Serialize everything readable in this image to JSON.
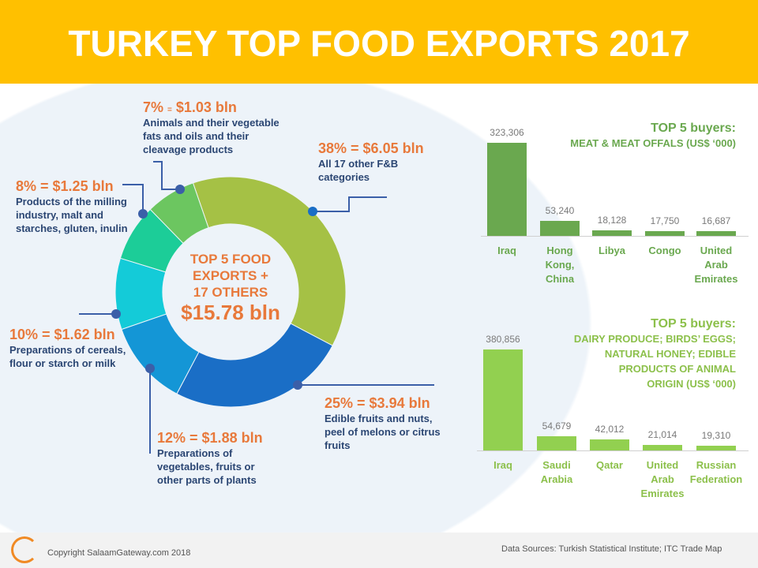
{
  "title": "TURKEY TOP FOOD EXPORTS 2017",
  "chart_data": [
    {
      "type": "pie",
      "center_text": [
        "TOP 5 FOOD",
        "EXPORTS +",
        "17 OTHERS"
      ],
      "total": "$15.78 bln",
      "slices": [
        {
          "pct_label": "38% = $6.05 bln",
          "percent": 38,
          "value_bln": 6.05,
          "desc": "All 17 other F&B categories",
          "color": "#a5c145"
        },
        {
          "pct_label": "25% = $3.94 bln",
          "percent": 25,
          "value_bln": 3.94,
          "desc": "Edible fruits and nuts, peel of melons or citrus fruits",
          "color": "#1a6ec6"
        },
        {
          "pct_label": "12% = $1.88 bln",
          "percent": 12,
          "value_bln": 1.88,
          "desc": "Preparations of vegetables, fruits or other parts of plants",
          "color": "#1496d6"
        },
        {
          "pct_label": "10% = $1.62 bln",
          "percent": 10,
          "value_bln": 1.62,
          "desc": "Preparations of cereals, flour or starch or milk",
          "color": "#14cbd8"
        },
        {
          "pct_label": "8% = $1.25 bln",
          "percent": 8,
          "value_bln": 1.25,
          "desc": "Products of the milling industry, malt and starches, gluten, inulin",
          "color": "#1ccd98"
        },
        {
          "pct_label_a": "7%",
          "pct_label_b": "=",
          "pct_label_c": "$1.03 bln",
          "percent": 7,
          "value_bln": 1.03,
          "desc": "Animals and their vegetable fats and oils and their cleavage products",
          "color": "#6cc660"
        }
      ]
    },
    {
      "type": "bar",
      "title": "TOP 5 buyers:",
      "subtitle": "MEAT & MEAT OFFALS (US$ ‘000)",
      "categories": [
        "Iraq",
        "Hong Kong, China",
        "Libya",
        "Congo",
        "United Arab Emirates"
      ],
      "values": [
        323306,
        53240,
        18128,
        17750,
        16687
      ],
      "value_labels": [
        "323,306",
        "53,240",
        "18,128",
        "17,750",
        "16,687"
      ],
      "color": "#6aa84f"
    },
    {
      "type": "bar",
      "title": "TOP 5 buyers:",
      "subtitle_lines": [
        "DAIRY PRODUCE; BIRDS’ EGGS;",
        "NATURAL HONEY; EDIBLE",
        "PRODUCTS OF ANIMAL",
        "ORIGIN (US$ ‘000)"
      ],
      "categories": [
        "Iraq",
        "Saudi Arabia",
        "Qatar",
        "United Arab Emirates",
        "Russian Federation"
      ],
      "values": [
        380856,
        54679,
        42012,
        21014,
        19310
      ],
      "value_labels": [
        "380,856",
        "54,679",
        "42,012",
        "21,014",
        "19,310"
      ],
      "color": "#92d050"
    }
  ],
  "footer": {
    "copyright": "Copyright SalaamGateway.com 2018",
    "sources": "Data Sources: Turkish Statistical Institute; ITC Trade Map"
  }
}
